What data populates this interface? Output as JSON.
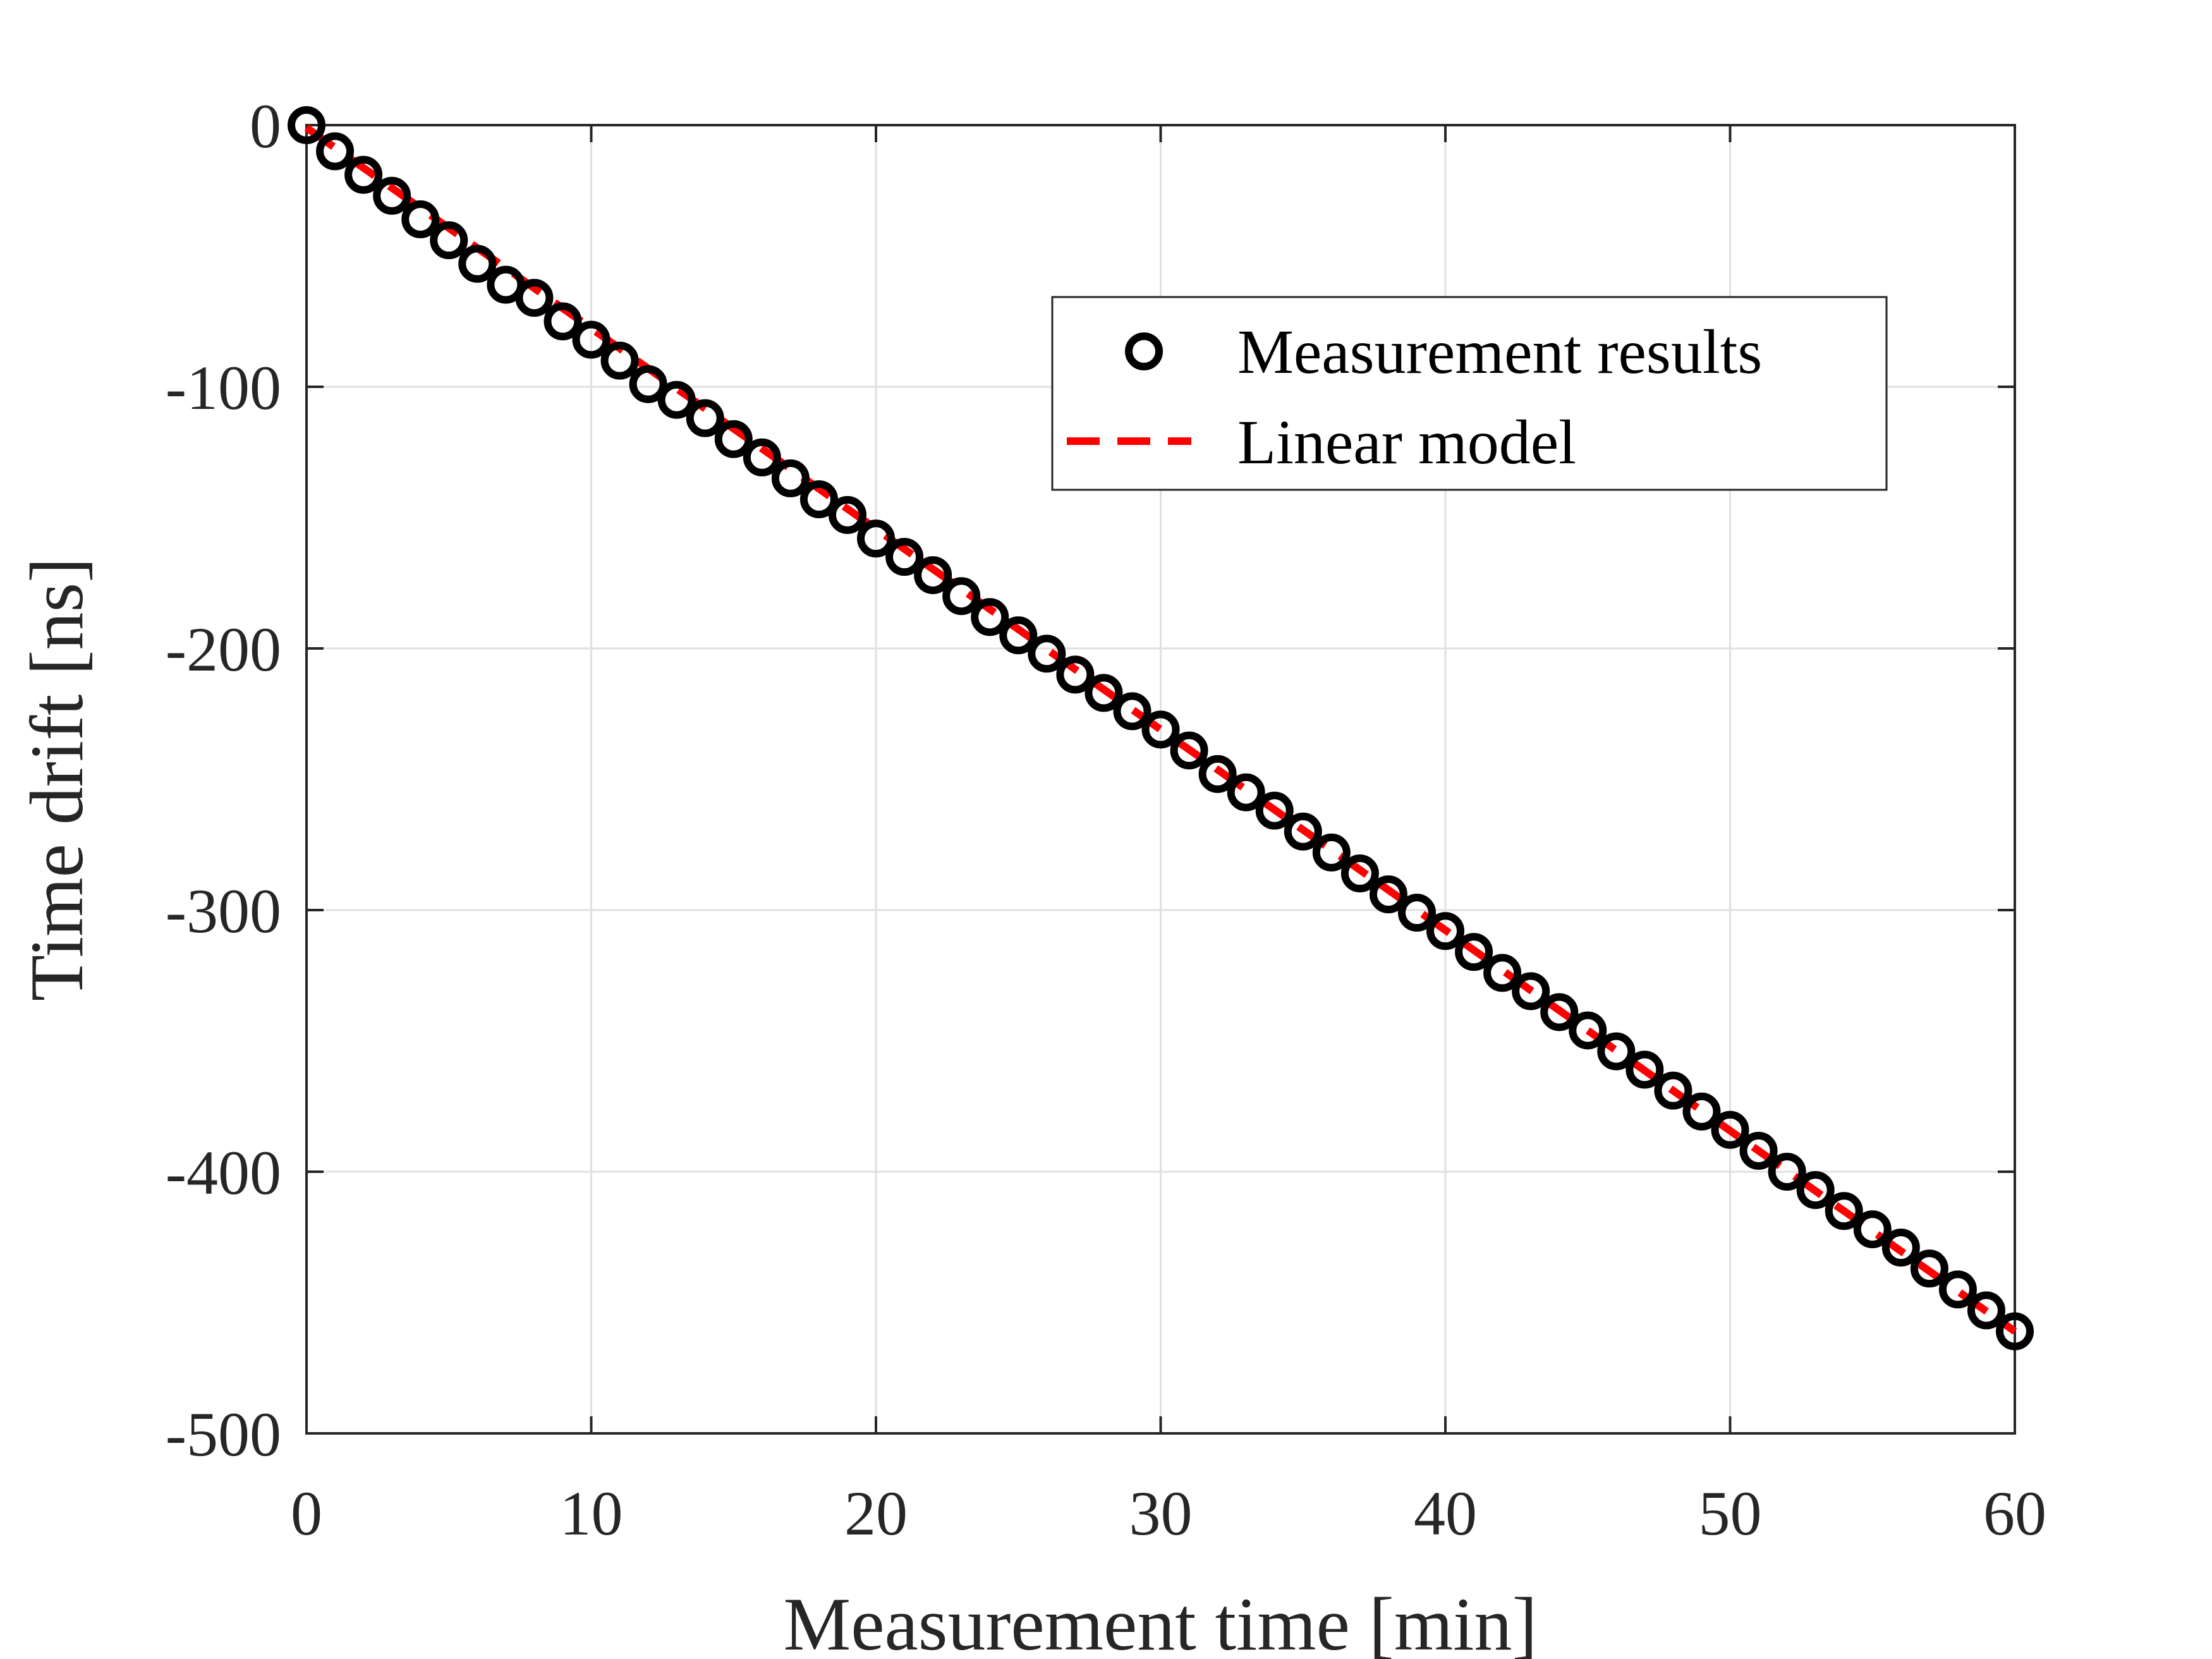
{
  "chart_data": {
    "type": "scatter",
    "xlabel": "Measurement time [min]",
    "ylabel": "Time drift [ns]",
    "xlim": [
      0,
      60
    ],
    "ylim": [
      -500,
      0
    ],
    "grid": true,
    "xticks": [
      0,
      10,
      20,
      30,
      40,
      50,
      60
    ],
    "yticks": [
      0,
      -100,
      -200,
      -300,
      -400,
      -500
    ],
    "legend_position": "upper-right-inside",
    "series": [
      {
        "name": "Measurement results",
        "kind": "markers",
        "marker": "circle",
        "color": "#000000",
        "x": [
          0,
          1,
          2,
          3,
          4,
          5,
          6,
          7,
          8,
          9,
          10,
          11,
          12,
          13,
          14,
          15,
          16,
          17,
          18,
          19,
          20,
          21,
          22,
          23,
          24,
          25,
          26,
          27,
          28,
          29,
          30,
          31,
          32,
          33,
          34,
          35,
          36,
          37,
          38,
          39,
          40,
          41,
          42,
          43,
          44,
          45,
          46,
          47,
          48,
          49,
          50,
          51,
          52,
          53,
          54,
          55,
          56,
          57,
          58,
          59,
          60
        ],
        "y": [
          0,
          -10,
          -19,
          -27,
          -36,
          -44,
          -53,
          -61,
          -66,
          -75,
          -82,
          -90,
          -99,
          -105,
          -112,
          -120,
          -127,
          -135,
          -143,
          -149,
          -158,
          -165,
          -172,
          -180,
          -188,
          -195,
          -202,
          -210,
          -217,
          -224,
          -231,
          -239,
          -248,
          -255,
          -262,
          -270,
          -278,
          -286,
          -294,
          -301,
          -308,
          -316,
          -324,
          -331,
          -339,
          -346,
          -354,
          -361,
          -369,
          -377,
          -384,
          -392,
          -400,
          -407,
          -415,
          -422,
          -429,
          -437,
          -445,
          -453,
          -461
        ]
      },
      {
        "name": "Linear model",
        "kind": "line",
        "dash": "dashed",
        "color": "#ff0000",
        "x": [
          0,
          60
        ],
        "y": [
          -1,
          -461
        ]
      }
    ]
  }
}
